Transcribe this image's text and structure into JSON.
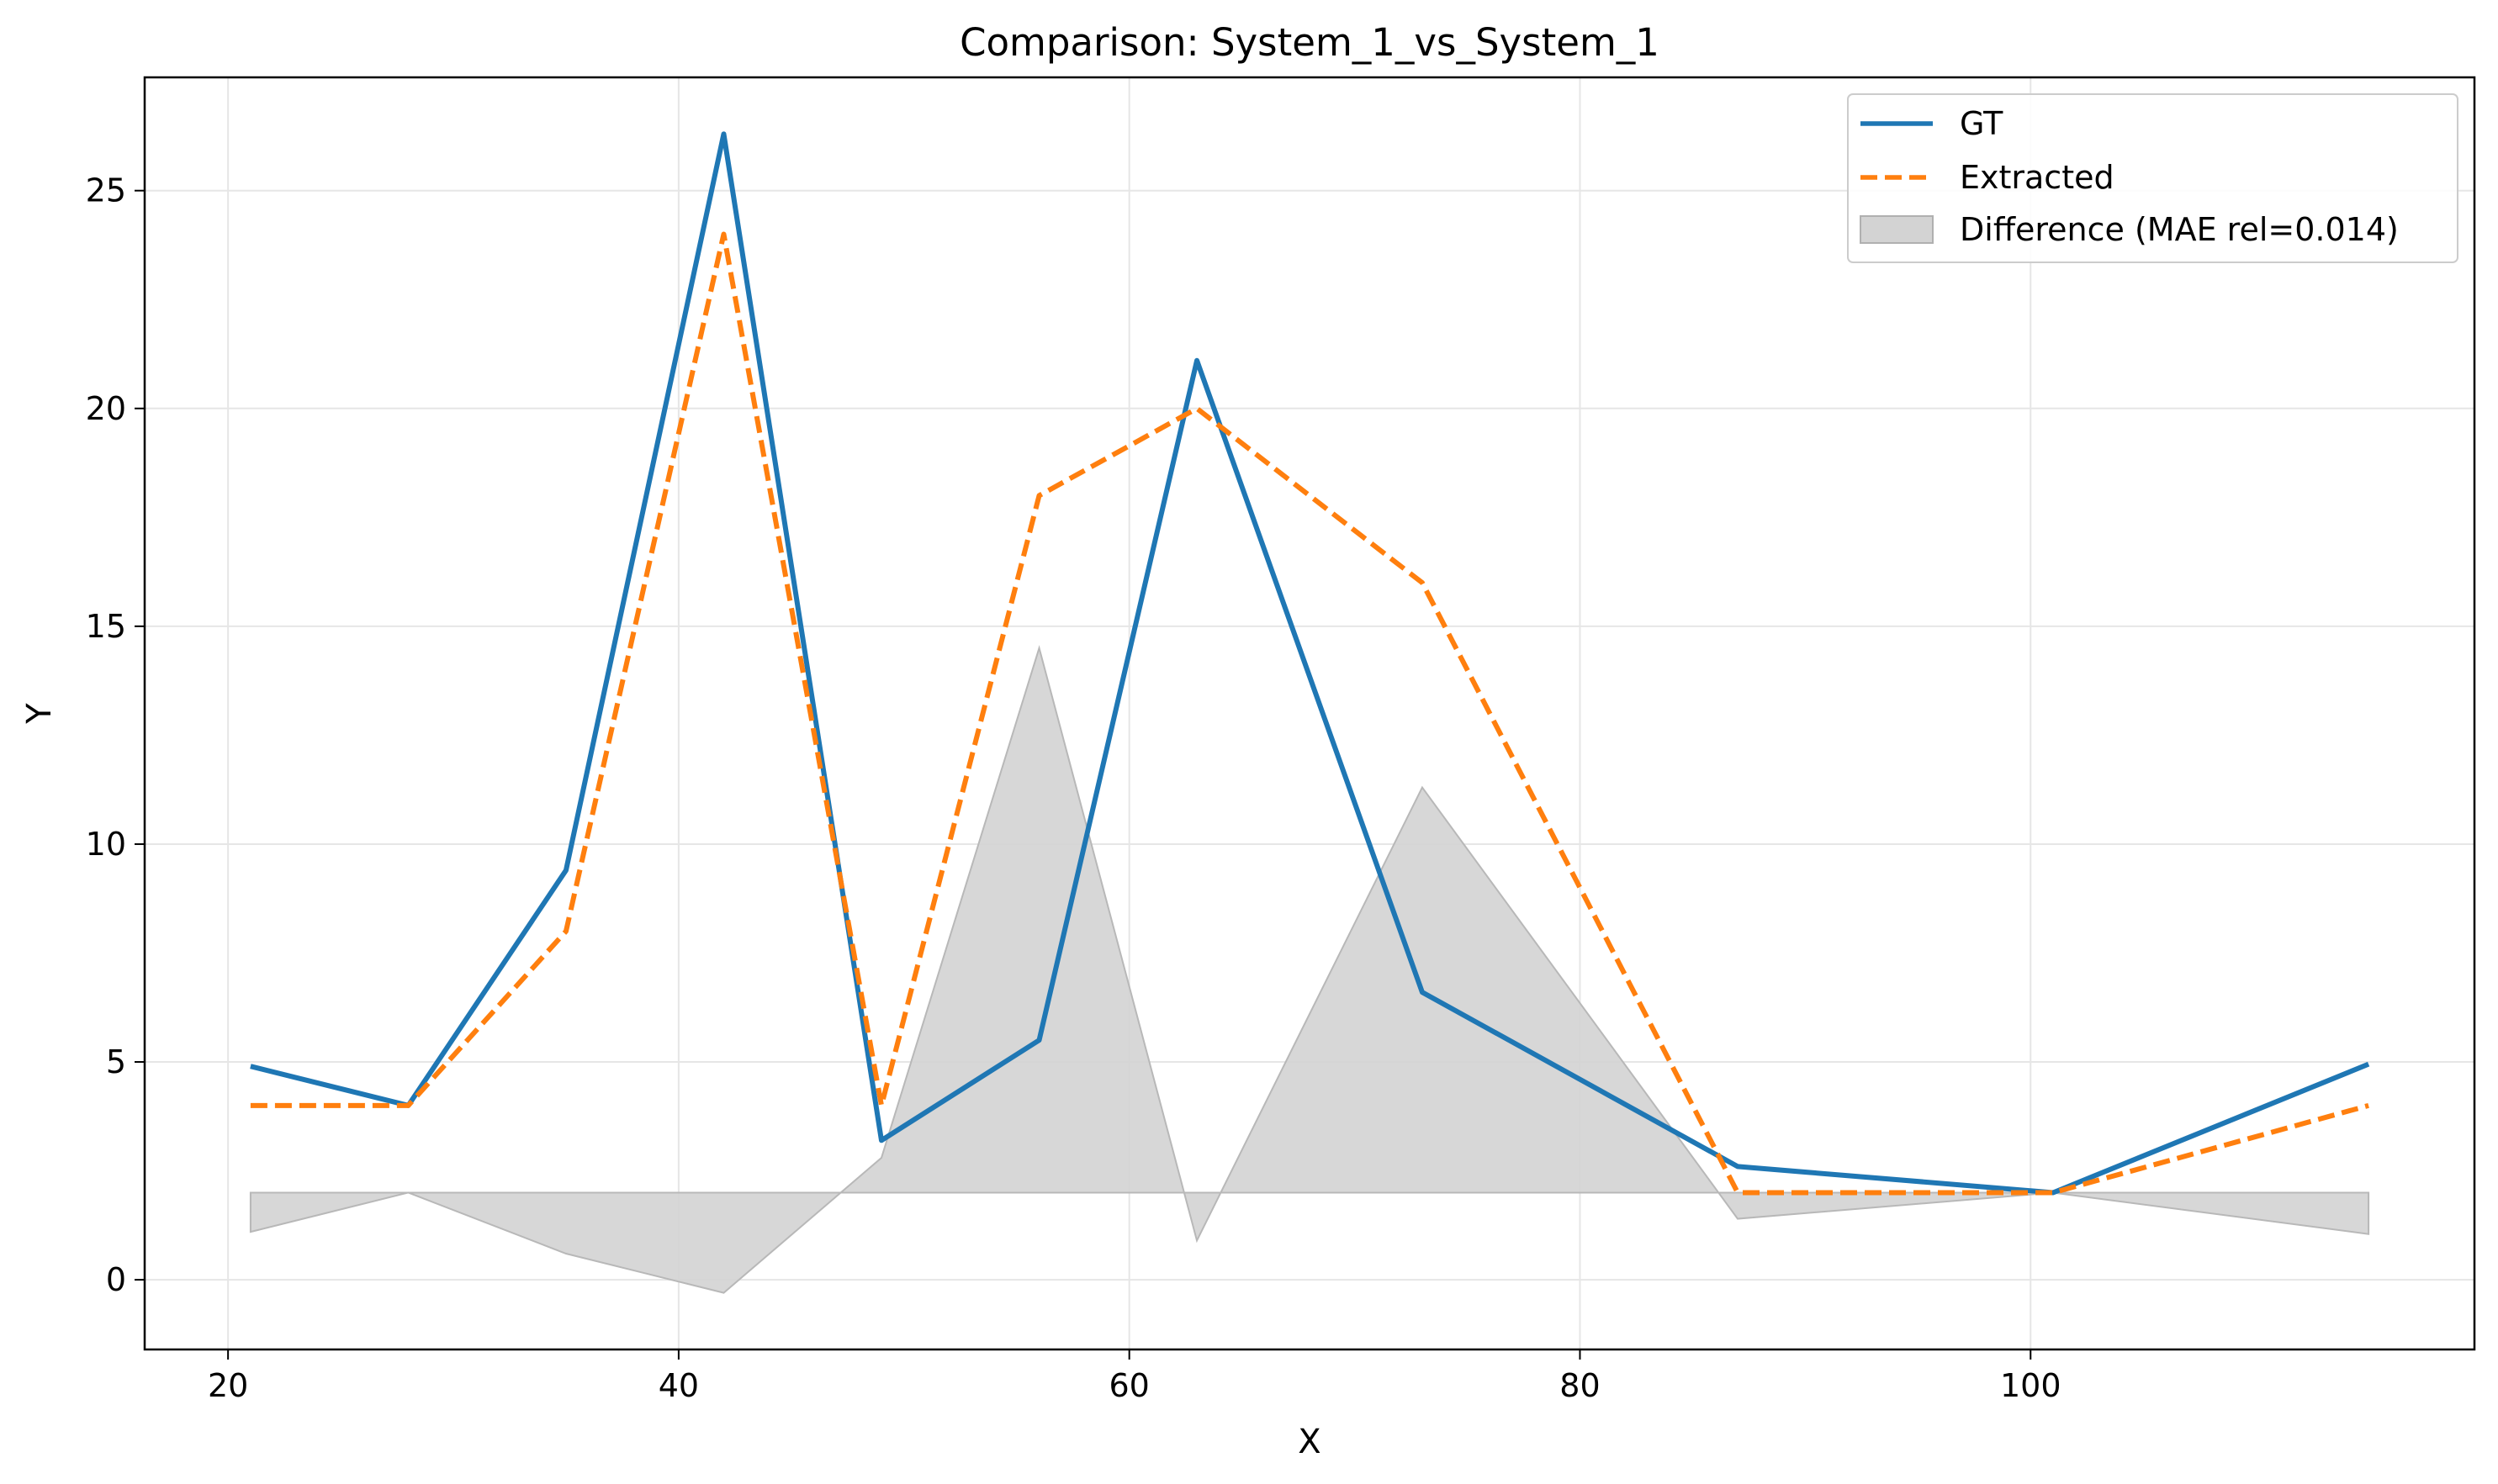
{
  "chart_data": {
    "type": "line",
    "title": "Comparison: System_1_vs_System_1",
    "xlabel": "X",
    "ylabel": "Y",
    "xlim": [
      16.3,
      119.7
    ],
    "ylim": [
      -1.6,
      27.6
    ],
    "xticks": [
      20,
      40,
      60,
      80,
      100
    ],
    "yticks": [
      0,
      5,
      10,
      15,
      20,
      25
    ],
    "grid": true,
    "legend_position": "top-right",
    "x": [
      21,
      28,
      35,
      42,
      49,
      56,
      63,
      73,
      87,
      101,
      115
    ],
    "series": [
      {
        "name": "GT",
        "color": "#1f77b4",
        "style": "solid",
        "values": [
          4.9,
          4.0,
          9.4,
          26.3,
          3.2,
          5.5,
          21.1,
          6.6,
          2.6,
          2.0,
          4.95
        ]
      },
      {
        "name": "Extracted",
        "color": "#ff7f0e",
        "style": "dashed",
        "values": [
          4.0,
          4.0,
          8.0,
          24.0,
          4.0,
          18.0,
          20.0,
          16.0,
          2.0,
          2.0,
          4.0
        ]
      }
    ],
    "difference": {
      "label": "Difference (MAE rel=0.014)",
      "color": "#d3d3d3",
      "baseline": 2.0,
      "values": [
        1.1,
        2.0,
        0.6,
        -0.3,
        2.8,
        14.5,
        0.9,
        11.3,
        1.4,
        2.0,
        1.05
      ]
    }
  }
}
